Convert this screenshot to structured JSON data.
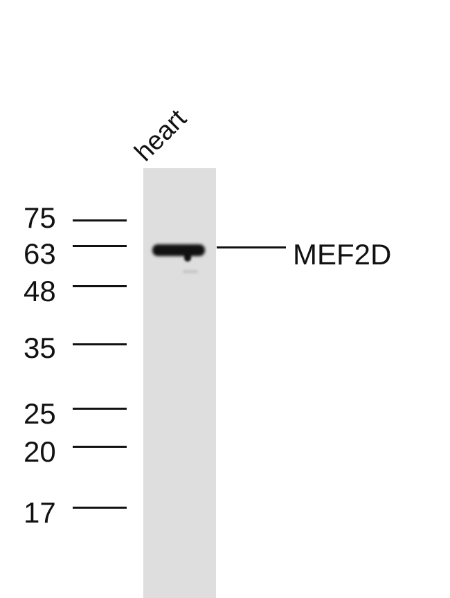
{
  "lanes": [
    {
      "label": "heart"
    }
  ],
  "markers": [
    {
      "label": "75",
      "kda": 75
    },
    {
      "label": "63",
      "kda": 63
    },
    {
      "label": "48",
      "kda": 48
    },
    {
      "label": "35",
      "kda": 35
    },
    {
      "label": "25",
      "kda": 25
    },
    {
      "label": "20",
      "kda": 20
    },
    {
      "label": "17",
      "kda": 17
    }
  ],
  "target": {
    "label": "MEF2D"
  },
  "colors": {
    "lane": "#dedede",
    "band": "#111111"
  }
}
